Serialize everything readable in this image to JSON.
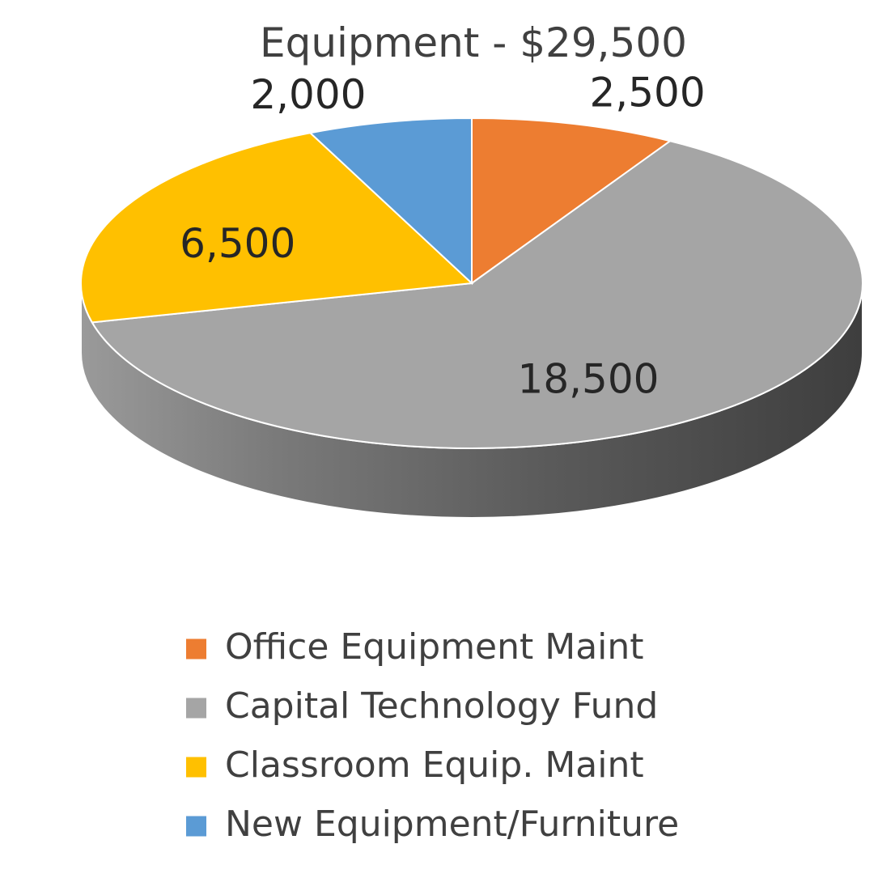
{
  "chart_data": {
    "type": "pie",
    "title": "Equipment - $29,500",
    "categories": [
      "Office Equipment Maint",
      "Capital Technology Fund",
      "Classroom Equip. Maint",
      "New Equipment/Furniture"
    ],
    "values": [
      2500,
      18500,
      6500,
      2000
    ],
    "data_labels": [
      "2,500",
      "18,500",
      "6,500",
      "2,000"
    ],
    "colors": [
      "#ED7D31",
      "#A5A5A5",
      "#FFC000",
      "#5B9BD5"
    ],
    "legend_position": "bottom",
    "three_d": true
  }
}
